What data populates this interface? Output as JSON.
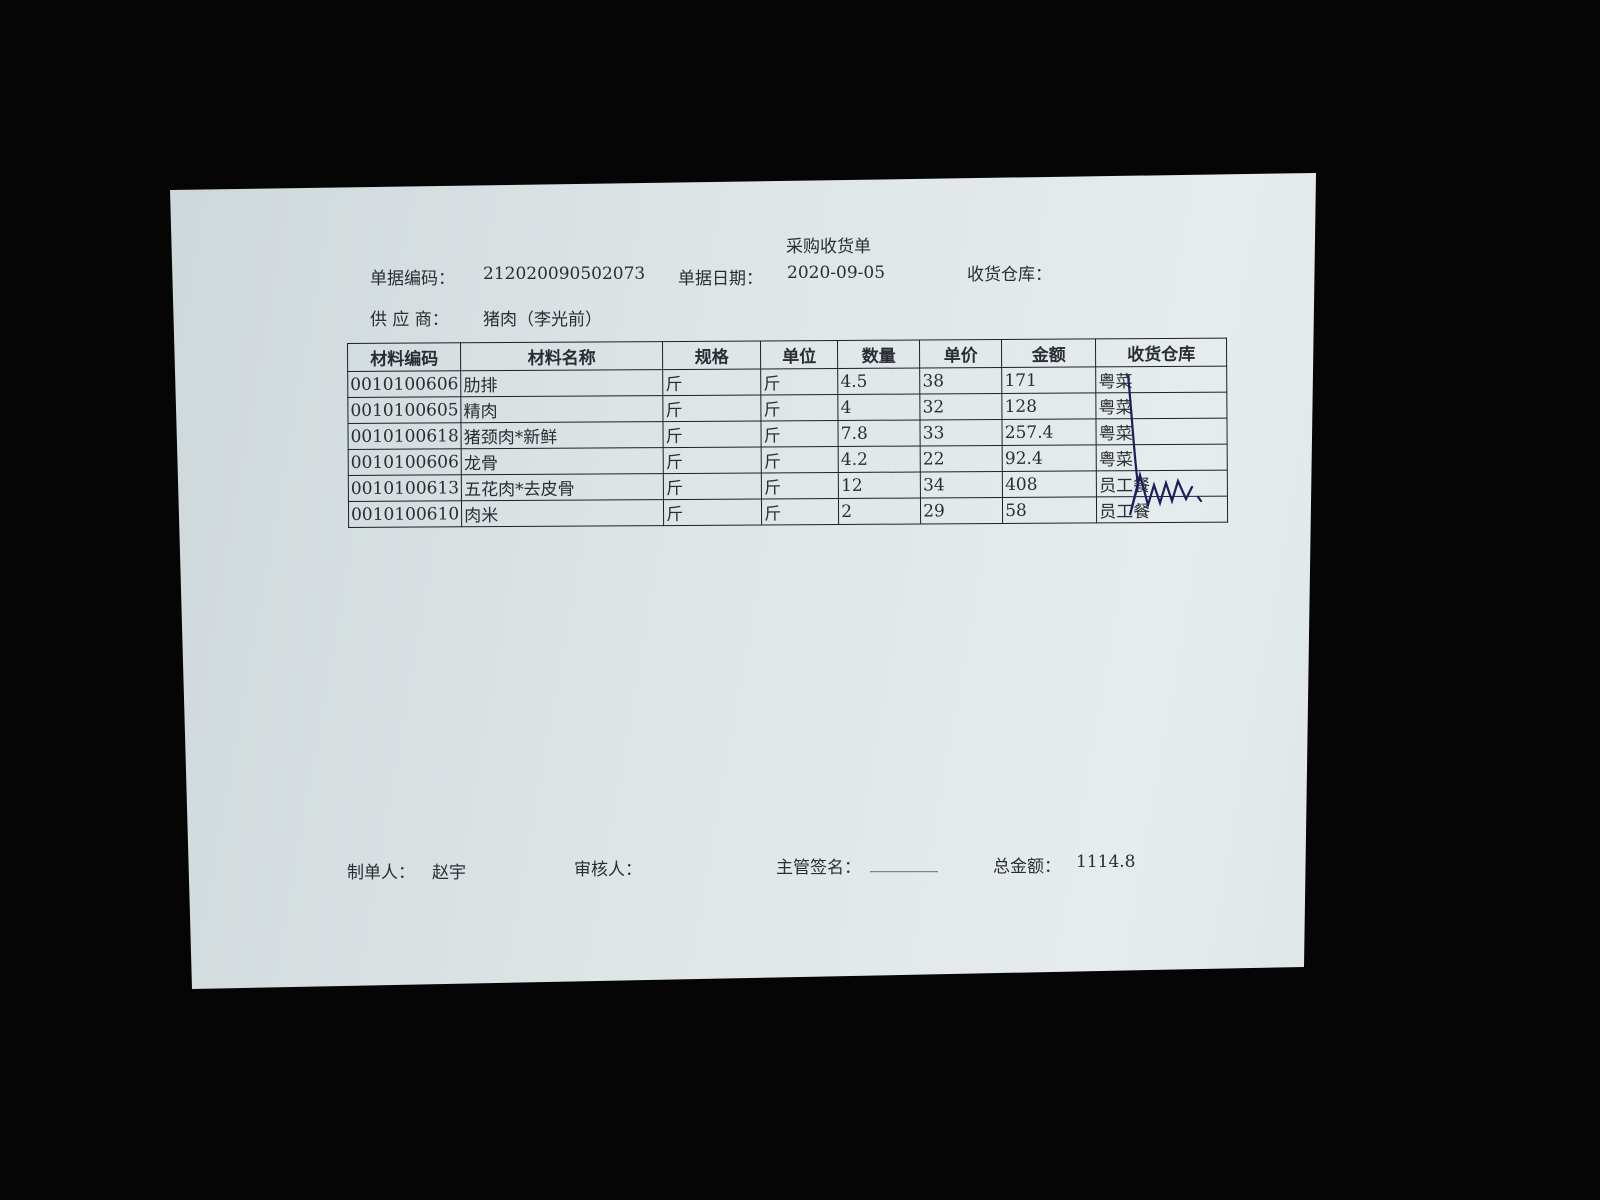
{
  "document": {
    "title": "采购收货单",
    "doc_no_label": "单据编码：",
    "doc_no": "212020090502073",
    "date_label": "单据日期：",
    "date": "2020-09-05",
    "warehouse_label": "收货仓库：",
    "supplier_label": "供 应 商：",
    "supplier": "猪肉（李光前）"
  },
  "table": {
    "headers": [
      "材料编码",
      "材料名称",
      "规格",
      "单位",
      "数量",
      "单价",
      "金额",
      "收货仓库"
    ],
    "rows": [
      [
        "0010100606",
        "肋排",
        "斤",
        "斤",
        "4.5",
        "38",
        "171",
        "粤菜"
      ],
      [
        "0010100605",
        "精肉",
        "斤",
        "斤",
        "4",
        "32",
        "128",
        "粤菜"
      ],
      [
        "0010100618",
        "猪颈肉*新鲜",
        "斤",
        "斤",
        "7.8",
        "33",
        "257.4",
        "粤菜"
      ],
      [
        "0010100606",
        "龙骨",
        "斤",
        "斤",
        "4.2",
        "22",
        "92.4",
        "粤菜"
      ],
      [
        "0010100613",
        "五花肉*去皮骨",
        "斤",
        "斤",
        "12",
        "34",
        "408",
        "员工餐"
      ],
      [
        "0010100610",
        "肉米",
        "斤",
        "斤",
        "2",
        "29",
        "58",
        "员工餐"
      ]
    ]
  },
  "footer": {
    "maker_label": "制单人：",
    "maker": "赵宇",
    "reviewer_label": "审核人：",
    "manager_label": "主管签名：",
    "manager_blank": "________",
    "total_label": "总金额：",
    "total": "1114.8"
  },
  "colors": {
    "paper": "#dfe6e8",
    "ink": "#2a2d33",
    "signature": "#1a1f5c",
    "background": "#050505"
  }
}
